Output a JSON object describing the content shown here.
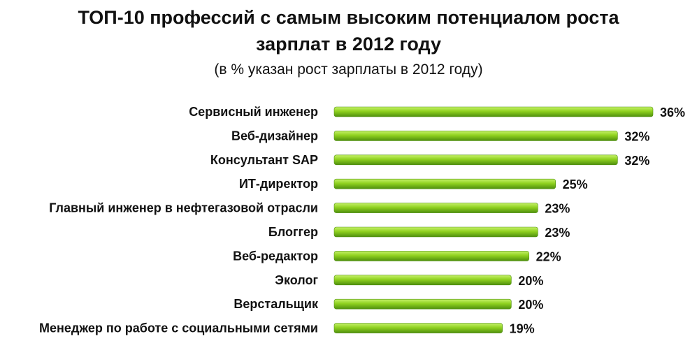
{
  "chart_data": {
    "type": "bar",
    "orientation": "horizontal",
    "title": "ТОП-10 профессий с самым высоким потенциалом роста",
    "title_line2": "зарплат в 2012 году",
    "subtitle": "(в % указан рост зарплаты в 2012 году)",
    "categories": [
      "Сервисный инженер",
      "Веб-дизайнер",
      "Консультант SAP",
      "ИТ-директор",
      "Главный инженер в нефтегазовой отрасли",
      "Блоггер",
      "Веб-редактор",
      "Эколог",
      "Верстальщик",
      "Менеджер по работе с социальными сетями"
    ],
    "values": [
      36,
      32,
      32,
      25,
      23,
      23,
      22,
      20,
      20,
      19
    ],
    "value_labels": [
      "36%",
      "32%",
      "32%",
      "25%",
      "23%",
      "23%",
      "22%",
      "20%",
      "20%",
      "19%"
    ],
    "xlim": [
      0,
      36
    ],
    "grid": false,
    "legend": "none",
    "bar_color": "#8fd11f",
    "bar_color_light": "#c6f26a",
    "bar_color_dark": "#4f8f0e"
  }
}
